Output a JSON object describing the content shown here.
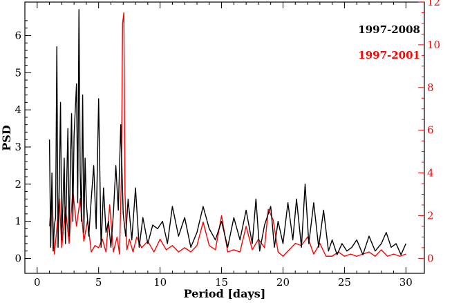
{
  "chart_data": {
    "type": "line",
    "title": "",
    "xlabel": "Period [days]",
    "ylabel": "PSD",
    "xlim": [
      -1,
      31.5
    ],
    "ylim_left": [
      -0.4,
      6.9
    ],
    "ylim_right": [
      -0.7,
      12.0
    ],
    "x_ticks": [
      0,
      5,
      10,
      15,
      20,
      25,
      30
    ],
    "x_tick_labels": [
      "0",
      "5",
      "10",
      "15",
      "20",
      "25",
      "30"
    ],
    "y_ticks_left": [
      0,
      1,
      2,
      3,
      4,
      5,
      6
    ],
    "y_tick_labels_left": [
      "0",
      "1",
      "2",
      "3",
      "4",
      "5",
      "6"
    ],
    "y_ticks_right": [
      0,
      2,
      4,
      6,
      8,
      10,
      12
    ],
    "y_tick_labels_right": [
      "0",
      "2",
      "4",
      "6",
      "8",
      "10",
      "12"
    ],
    "grid": false,
    "legend_position": "top-right",
    "series": [
      {
        "name": "1997-2008",
        "color": "#000000",
        "axis": "left",
        "x": [
          1.0,
          1.1,
          1.2,
          1.3,
          1.4,
          1.5,
          1.6,
          1.7,
          1.8,
          1.9,
          2.0,
          2.1,
          2.2,
          2.3,
          2.4,
          2.5,
          2.6,
          2.7,
          2.8,
          2.9,
          3.0,
          3.1,
          3.2,
          3.3,
          3.4,
          3.5,
          3.6,
          3.7,
          3.8,
          3.9,
          4.0,
          4.2,
          4.4,
          4.6,
          4.8,
          5.0,
          5.2,
          5.4,
          5.6,
          5.8,
          6.0,
          6.2,
          6.4,
          6.6,
          6.8,
          7.0,
          7.2,
          7.4,
          7.7,
          8.0,
          8.3,
          8.6,
          9.0,
          9.4,
          9.8,
          10.2,
          10.6,
          11.0,
          11.5,
          12.0,
          12.5,
          13.0,
          13.5,
          14.0,
          14.5,
          15.0,
          15.5,
          16.0,
          16.5,
          17.0,
          17.5,
          17.8,
          18.1,
          18.5,
          19.0,
          19.3,
          19.6,
          20.0,
          20.4,
          20.8,
          21.1,
          21.5,
          21.8,
          22.1,
          22.5,
          22.9,
          23.3,
          23.7,
          24.0,
          24.4,
          24.8,
          25.2,
          25.6,
          26.0,
          26.5,
          27.0,
          27.5,
          28.0,
          28.4,
          28.8,
          29.2,
          29.6,
          30.0
        ],
        "y": [
          3.2,
          0.3,
          2.3,
          0.2,
          0.9,
          1.1,
          5.7,
          0.3,
          2.0,
          4.2,
          0.5,
          1.5,
          2.7,
          0.4,
          2.0,
          3.5,
          0.6,
          2.5,
          3.9,
          1.0,
          3.3,
          4.0,
          4.7,
          1.5,
          6.7,
          2.3,
          1.0,
          4.4,
          0.7,
          2.7,
          1.5,
          0.6,
          1.6,
          2.5,
          0.8,
          4.3,
          0.3,
          1.9,
          0.7,
          1.0,
          0.3,
          1.2,
          2.5,
          1.3,
          3.6,
          1.2,
          0.6,
          1.6,
          0.5,
          1.9,
          0.3,
          1.1,
          0.4,
          0.9,
          0.8,
          1.0,
          0.4,
          1.4,
          0.6,
          1.1,
          0.3,
          0.7,
          1.4,
          0.8,
          0.5,
          1.0,
          0.3,
          1.1,
          0.5,
          1.3,
          0.4,
          1.6,
          0.2,
          0.9,
          1.4,
          0.3,
          1.0,
          0.4,
          1.5,
          0.5,
          1.6,
          0.3,
          2.0,
          0.4,
          1.5,
          0.3,
          1.3,
          0.2,
          0.5,
          0.1,
          0.4,
          0.2,
          0.3,
          0.5,
          0.1,
          0.6,
          0.2,
          0.4,
          0.7,
          0.3,
          0.4,
          0.1,
          0.4
        ]
      },
      {
        "name": "1997-2001",
        "color": "#ff0000",
        "axis": "right",
        "x": [
          1.0,
          1.2,
          1.4,
          1.6,
          1.8,
          2.0,
          2.3,
          2.6,
          2.9,
          3.2,
          3.5,
          3.8,
          4.1,
          4.4,
          4.7,
          5.0,
          5.3,
          5.6,
          5.9,
          6.2,
          6.5,
          6.7,
          6.85,
          6.95,
          7.05,
          7.15,
          7.3,
          7.5,
          7.8,
          8.1,
          8.5,
          9.0,
          9.5,
          10.0,
          10.5,
          11.0,
          11.5,
          12.0,
          12.5,
          13.0,
          13.5,
          14.0,
          14.5,
          15.0,
          15.5,
          16.0,
          16.5,
          17.0,
          17.5,
          18.0,
          18.5,
          18.8,
          19.2,
          19.6,
          20.0,
          20.5,
          21.0,
          21.5,
          22.0,
          22.5,
          23.0,
          23.5,
          24.0,
          24.5,
          25.0,
          25.5,
          26.0,
          26.5,
          27.0,
          27.5,
          28.0,
          28.5,
          29.0,
          29.5,
          30.0
        ],
        "y": [
          1.5,
          3.0,
          0.2,
          1.4,
          2.8,
          0.5,
          2.4,
          0.7,
          3.2,
          1.5,
          2.8,
          0.8,
          1.8,
          0.3,
          0.6,
          0.5,
          0.9,
          0.3,
          2.5,
          0.3,
          1.0,
          0.2,
          3.8,
          11.0,
          11.5,
          3.0,
          0.4,
          0.9,
          0.3,
          1.0,
          0.5,
          0.8,
          0.3,
          0.9,
          0.4,
          0.6,
          0.3,
          0.5,
          0.3,
          0.6,
          1.7,
          0.6,
          0.4,
          2.0,
          0.3,
          0.4,
          0.3,
          1.5,
          0.4,
          0.9,
          0.5,
          2.3,
          1.8,
          0.3,
          0.1,
          0.4,
          0.7,
          0.6,
          1.0,
          0.2,
          0.7,
          0.1,
          0.1,
          0.3,
          0.1,
          0.2,
          0.1,
          0.2,
          0.3,
          0.1,
          0.4,
          0.1,
          0.2,
          0.1,
          0.2
        ]
      }
    ]
  }
}
